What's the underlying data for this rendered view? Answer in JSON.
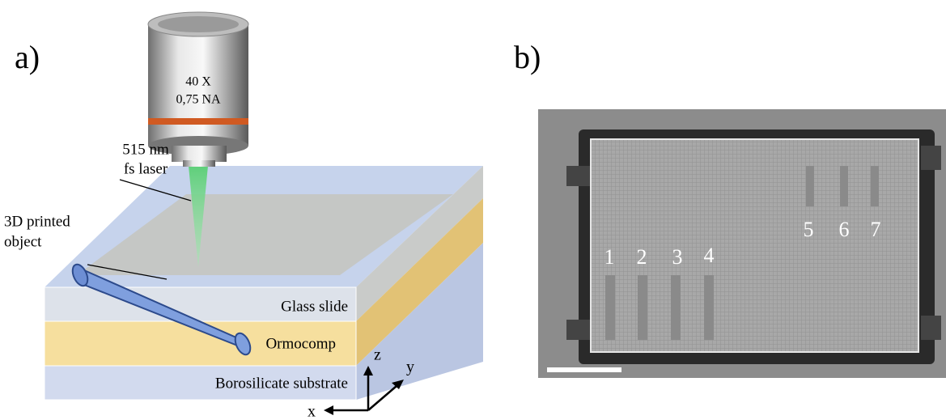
{
  "panel_a": {
    "label": "a)",
    "objective": [
      "40 X",
      "0,75 NA"
    ],
    "laser": [
      "515 nm",
      "fs laser"
    ],
    "object": [
      "3D printed",
      "object"
    ],
    "layers": [
      "Glass slide",
      "Ormocomp",
      "Borosilicate substrate"
    ],
    "axes": {
      "z": "z",
      "y": "y",
      "x": "x"
    }
  },
  "panel_b": {
    "label": "b)",
    "markers": [
      "1",
      "2",
      "3",
      "4",
      "5",
      "6",
      "7"
    ]
  }
}
